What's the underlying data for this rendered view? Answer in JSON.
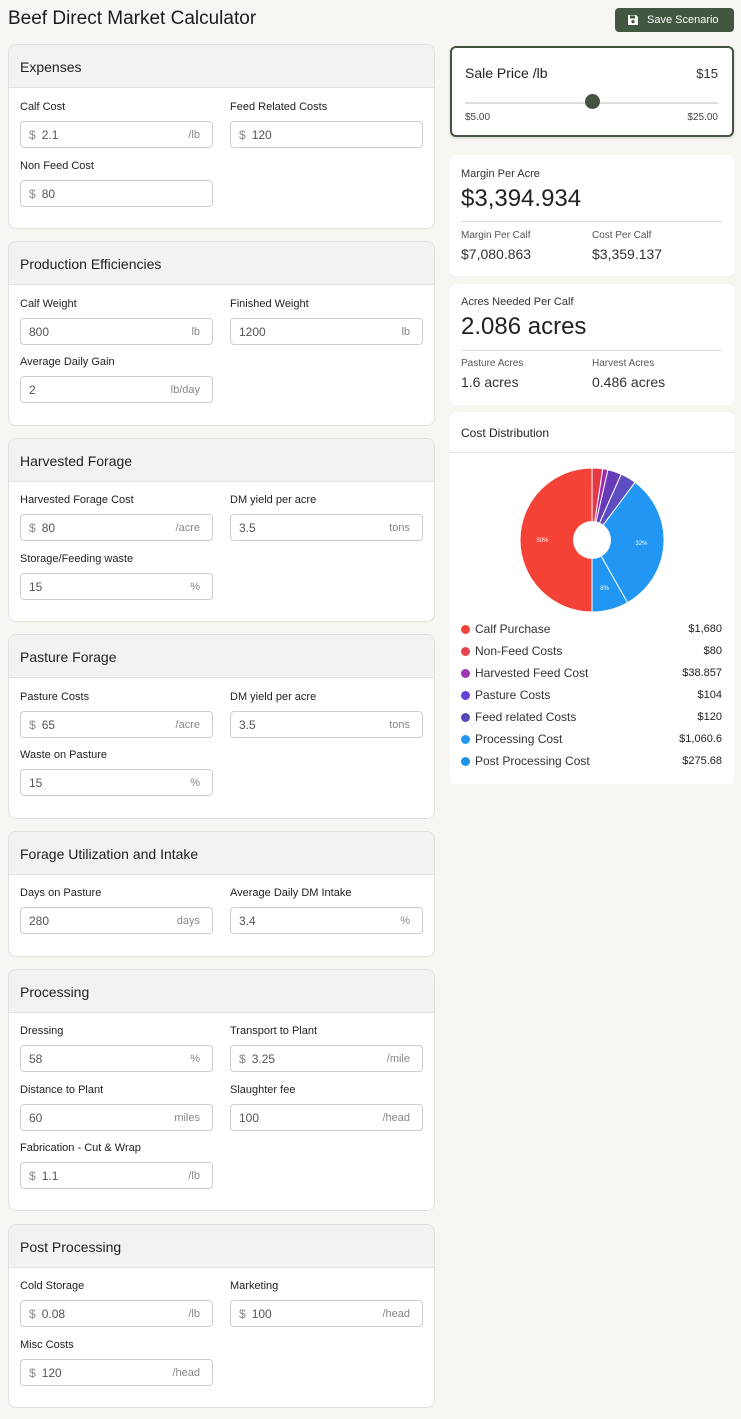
{
  "app": {
    "title": "Beef Direct Market Calculator",
    "save_label": "Save Scenario"
  },
  "sections": {
    "expenses": {
      "title": "Expenses",
      "calf_cost": {
        "label": "Calf Cost",
        "prefix": "$",
        "value": "2.1",
        "suffix": "/lb"
      },
      "feed_related": {
        "label": "Feed Related Costs",
        "prefix": "$",
        "value": "120",
        "suffix": ""
      },
      "non_feed": {
        "label": "Non Feed Cost",
        "prefix": "$",
        "value": "80",
        "suffix": ""
      }
    },
    "production": {
      "title": "Production Efficiencies",
      "calf_weight": {
        "label": "Calf Weight",
        "value": "800",
        "suffix": "lb"
      },
      "finished_weight": {
        "label": "Finished Weight",
        "value": "1200",
        "suffix": "lb"
      },
      "adg": {
        "label": "Average Daily Gain",
        "value": "2",
        "suffix": "lb/day"
      }
    },
    "harvested": {
      "title": "Harvested Forage",
      "cost": {
        "label": "Harvested Forage Cost",
        "prefix": "$",
        "value": "80",
        "suffix": "/acre"
      },
      "dm_yield": {
        "label": "DM yield per acre",
        "value": "3.5",
        "suffix": "tons"
      },
      "waste": {
        "label": "Storage/Feeding waste",
        "value": "15",
        "suffix": "%"
      }
    },
    "pasture": {
      "title": "Pasture Forage",
      "cost": {
        "label": "Pasture Costs",
        "prefix": "$",
        "value": "65",
        "suffix": "/acre"
      },
      "dm_yield": {
        "label": "DM yield per acre",
        "value": "3.5",
        "suffix": "tons"
      },
      "waste": {
        "label": "Waste on Pasture",
        "value": "15",
        "suffix": "%"
      }
    },
    "utilization": {
      "title": "Forage Utilization and Intake",
      "days": {
        "label": "Days on Pasture",
        "value": "280",
        "suffix": "days"
      },
      "intake": {
        "label": "Average Daily DM Intake",
        "value": "3.4",
        "suffix": "%"
      }
    },
    "processing": {
      "title": "Processing",
      "dressing": {
        "label": "Dressing",
        "value": "58",
        "suffix": "%"
      },
      "transport": {
        "label": "Transport to Plant",
        "prefix": "$",
        "value": "3.25",
        "suffix": "/mile"
      },
      "distance": {
        "label": "Distance to Plant",
        "value": "60",
        "suffix": "miles"
      },
      "slaughter": {
        "label": "Slaughter fee",
        "value": "100",
        "suffix": "/head"
      },
      "fabrication": {
        "label": "Fabrication - Cut & Wrap",
        "prefix": "$",
        "value": "1.1",
        "suffix": "/lb"
      }
    },
    "post": {
      "title": "Post Processing",
      "cold": {
        "label": "Cold Storage",
        "prefix": "$",
        "value": "0.08",
        "suffix": "/lb"
      },
      "marketing": {
        "label": "Marketing",
        "prefix": "$",
        "value": "100",
        "suffix": "/head"
      },
      "misc": {
        "label": "Misc Costs",
        "prefix": "$",
        "value": "120",
        "suffix": "/head"
      }
    }
  },
  "sale_price": {
    "title": "Sale Price /lb",
    "value": "$15",
    "min_label": "$5.00",
    "max_label": "$25.00",
    "level": 0.5
  },
  "margin": {
    "title": "Margin Per Acre",
    "value": "$3,394.934",
    "per_calf_label": "Margin Per Calf",
    "per_calf_value": "$7,080.863",
    "cost_label": "Cost Per Calf",
    "cost_value": "$3,359.137"
  },
  "acres": {
    "title": "Acres Needed Per Calf",
    "value": "2.086 acres",
    "pasture_label": "Pasture Acres",
    "pasture_value": "1.6 acres",
    "harvest_label": "Harvest Acres",
    "harvest_value": "0.486 acres"
  },
  "cost_distribution": {
    "title": "Cost Distribution",
    "legend": [
      {
        "label": "Calf Purchase",
        "value": "$1,680",
        "color": "#f04438"
      },
      {
        "label": "Non-Feed Costs",
        "value": "$80",
        "color": "#e8424f"
      },
      {
        "label": "Harvested Feed Cost",
        "value": "$38.857",
        "color": "#9c36b5"
      },
      {
        "label": "Pasture Costs",
        "value": "$104",
        "color": "#6741d9"
      },
      {
        "label": "Feed related Costs",
        "value": "$120",
        "color": "#5549b8"
      },
      {
        "label": "Processing Cost",
        "value": "$1,060.6",
        "color": "#2196f3"
      },
      {
        "label": "Post Processing Cost",
        "value": "$275.68",
        "color": "#1f93ea"
      }
    ]
  },
  "chart_data": {
    "type": "pie",
    "title": "Cost Distribution",
    "categories": [
      "Calf Purchase",
      "Non-Feed Costs",
      "Harvested Feed Cost",
      "Pasture Costs",
      "Feed related Costs",
      "Processing Cost",
      "Post Processing Cost"
    ],
    "values": [
      1680,
      80,
      38.857,
      104,
      120,
      1060.6,
      275.68
    ],
    "slice_labels": [
      "50%",
      "",
      "",
      "",
      "",
      "32%",
      "8%"
    ],
    "colors": [
      "#f44336",
      "#e53948",
      "#9c27b0",
      "#673ab7",
      "#5c4ec1",
      "#2196f3",
      "#2196f3"
    ]
  }
}
